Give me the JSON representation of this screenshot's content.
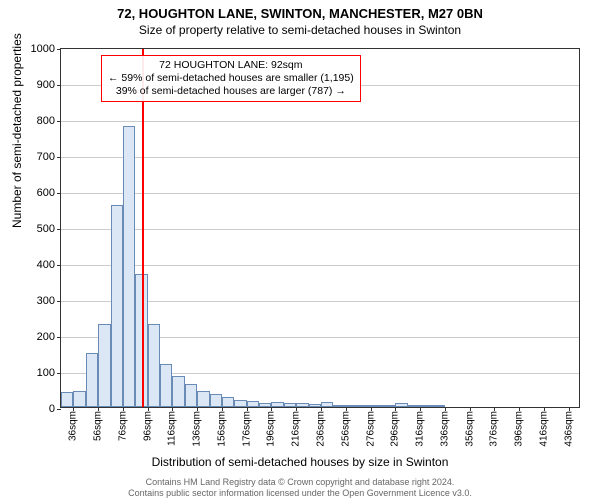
{
  "title_line1": "72, HOUGHTON LANE, SWINTON, MANCHESTER, M27 0BN",
  "title_line2": "Size of property relative to semi-detached houses in Swinton",
  "ylabel": "Number of semi-detached properties",
  "xlabel": "Distribution of semi-detached houses by size in Swinton",
  "footer_line1": "Contains HM Land Registry data © Crown copyright and database right 2024.",
  "footer_line2": "Contains public sector information licensed under the Open Government Licence v3.0.",
  "annotation": {
    "line1": "72 HOUGHTON LANE: 92sqm",
    "line2": "← 59% of semi-detached houses are smaller (1,195)",
    "line3": "39% of semi-detached houses are larger (787) →"
  },
  "chart": {
    "type": "histogram",
    "ylim": [
      0,
      1000
    ],
    "ytick_step": 100,
    "background_color": "#ffffff",
    "grid_color": "#cccccc",
    "bar_fill": "#dbe7f5",
    "bar_border": "#6a8bb5",
    "refline_color": "#ff0000",
    "refline_x": 92,
    "x_start": 26,
    "x_bin_width": 10,
    "x_tick_start": 36,
    "x_tick_step": 20,
    "x_tick_count": 21,
    "x_tick_suffix": "sqm",
    "bars": [
      42,
      45,
      150,
      230,
      560,
      780,
      370,
      230,
      120,
      85,
      65,
      45,
      35,
      28,
      20,
      18,
      12,
      15,
      12,
      10,
      8,
      15,
      5,
      6,
      4,
      3,
      2,
      12,
      2,
      1,
      1,
      0,
      0,
      0,
      0,
      0,
      0,
      0,
      0,
      0,
      0,
      0
    ],
    "title_fontsize": 13,
    "subtitle_fontsize": 12,
    "label_fontsize": 12,
    "tick_fontsize": 11
  }
}
